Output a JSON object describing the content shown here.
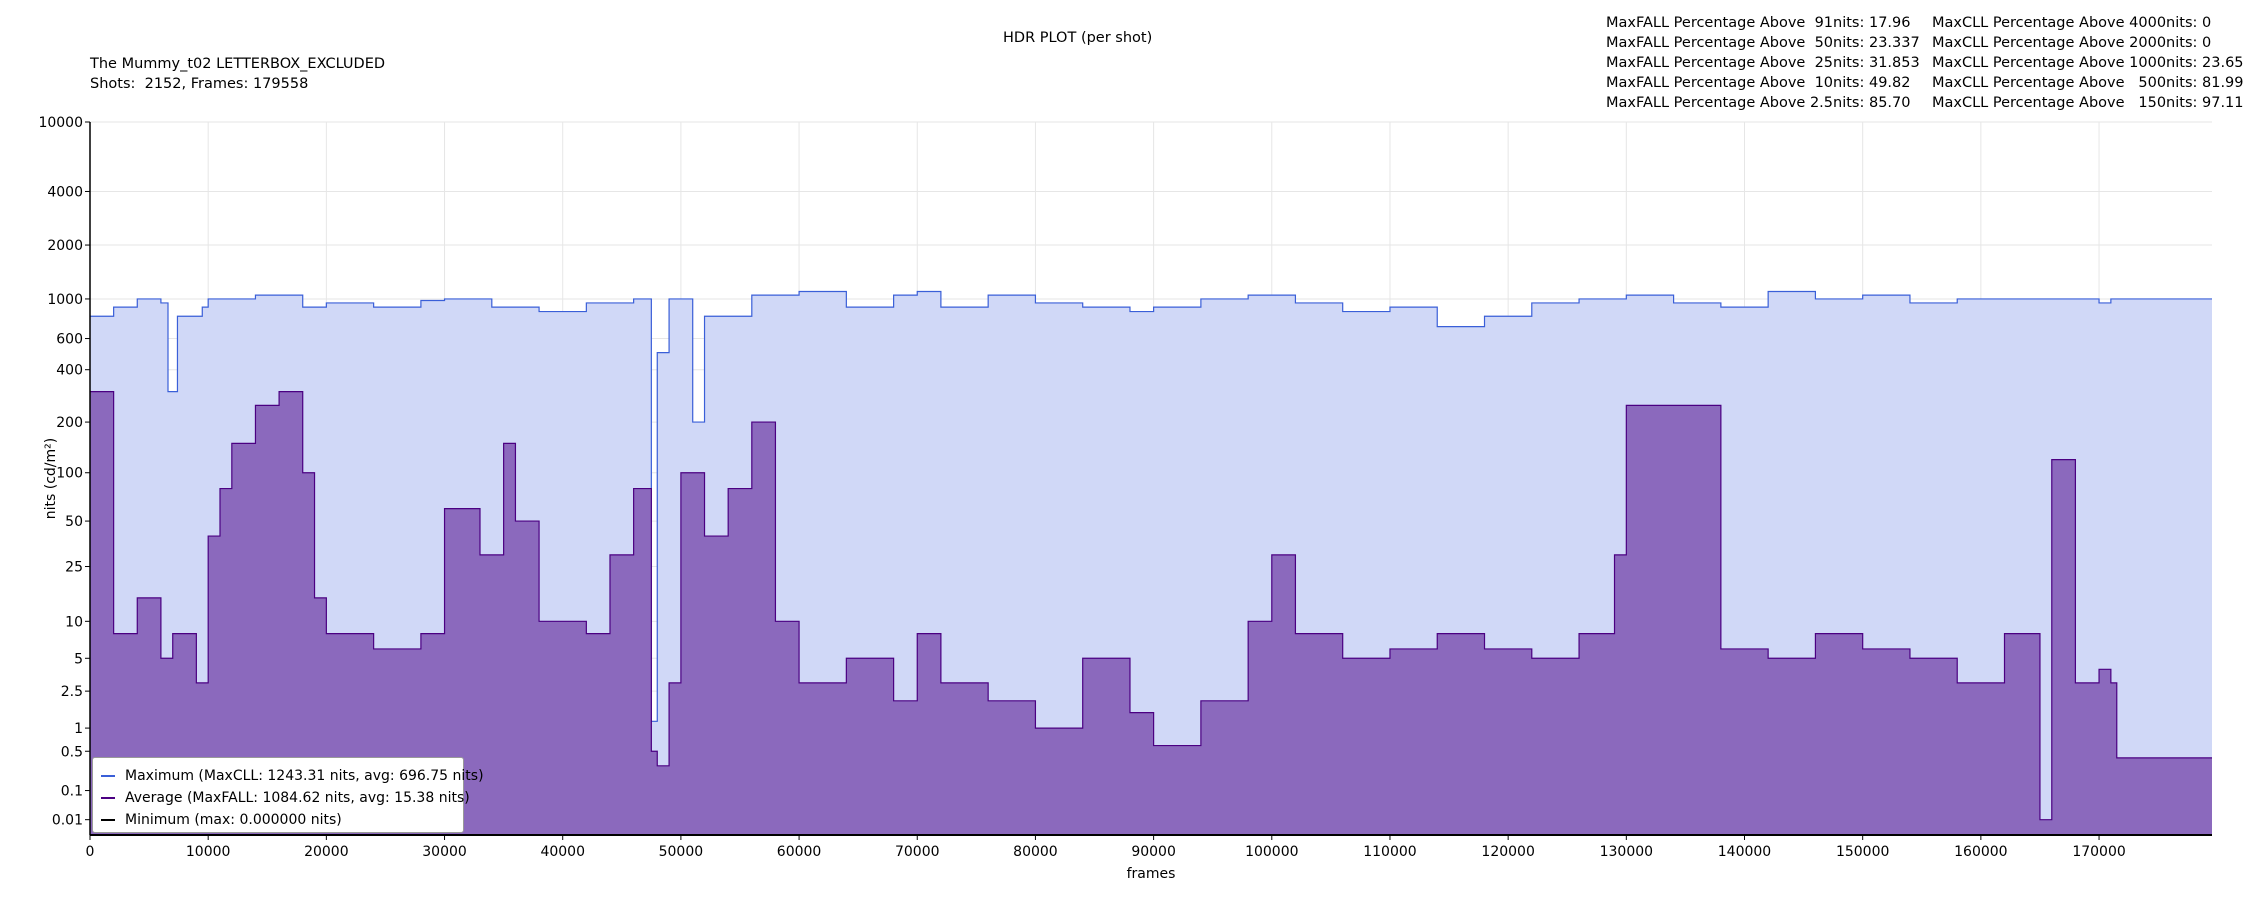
{
  "header": {
    "plot_title": "HDR PLOT (per shot)",
    "source_title": "The Mummy_t02 LETTERBOX_EXCLUDED",
    "shots_frames": "Shots:  2152, Frames: 179558"
  },
  "stats": {
    "maxfall": [
      "MaxFALL Percentage Above  91nits: 17.96",
      "MaxFALL Percentage Above  50nits: 23.337",
      "MaxFALL Percentage Above  25nits: 31.853",
      "MaxFALL Percentage Above  10nits: 49.82",
      "MaxFALL Percentage Above 2.5nits: 85.70"
    ],
    "maxcll": [
      "MaxCLL Percentage Above 4000nits: 0",
      "MaxCLL Percentage Above 2000nits: 0",
      "MaxCLL Percentage Above 1000nits: 23.65",
      "MaxCLL Percentage Above   500nits: 81.99",
      "MaxCLL Percentage Above   150nits: 97.11"
    ]
  },
  "legend": {
    "maximum": "Maximum (MaxCLL: 1243.31 nits, avg: 696.75 nits)",
    "average": "Average (MaxFALL: 1084.62 nits, avg: 15.38 nits)",
    "minimum": "Minimum (max: 0.000000 nits)"
  },
  "colors": {
    "max_line": "#3a5fd8",
    "max_fill": "#d0d8f7",
    "avg_line": "#4b0082",
    "avg_fill": "#8b69bd",
    "min_line": "#000000",
    "grid": "#e6e6e6"
  },
  "chart_data": {
    "type": "area",
    "title": "HDR PLOT (per shot)",
    "xlabel": "frames",
    "ylabel": "nits (cd/m²)",
    "xlim": [
      0,
      179558
    ],
    "ylim": [
      0,
      10000
    ],
    "y_scale": "PQ (ST 2084)",
    "grid": true,
    "legend_position": "bottom-left",
    "x_ticks": [
      0,
      10000,
      20000,
      30000,
      40000,
      50000,
      60000,
      70000,
      80000,
      90000,
      100000,
      110000,
      120000,
      130000,
      140000,
      150000,
      160000,
      170000
    ],
    "y_ticks": [
      0.01,
      0.1,
      0.5,
      1,
      2.5,
      5,
      10,
      25,
      50,
      100,
      200,
      400,
      600,
      1000,
      2000,
      4000,
      10000
    ],
    "series": [
      {
        "name": "Maximum (MaxCLL: 1243.31 nits, avg: 696.75 nits)",
        "x": [
          0,
          1700,
          2000,
          4000,
          6000,
          6600,
          7400,
          9500,
          10000,
          14000,
          18000,
          20000,
          24000,
          28000,
          30000,
          34000,
          38000,
          42000,
          46000,
          47500,
          48000,
          49000,
          51000,
          52000,
          56000,
          60000,
          64000,
          68000,
          70000,
          72000,
          76000,
          80000,
          84000,
          88000,
          90000,
          94000,
          98000,
          102000,
          106000,
          110000,
          114000,
          118000,
          122000,
          126000,
          130000,
          134000,
          138000,
          142000,
          146000,
          150000,
          154000,
          158000,
          162000,
          166000,
          168000,
          170000,
          171000,
          171500,
          179558
        ],
        "values": [
          800,
          800,
          900,
          1000,
          950,
          300,
          800,
          900,
          1000,
          1050,
          900,
          950,
          900,
          980,
          1000,
          900,
          850,
          950,
          1000,
          1.2,
          500,
          1000,
          200,
          800,
          1050,
          1100,
          900,
          1050,
          1100,
          900,
          1050,
          950,
          900,
          850,
          900,
          1000,
          1050,
          950,
          850,
          900,
          700,
          800,
          950,
          1000,
          1050,
          950,
          900,
          1100,
          1000,
          1050,
          950,
          1000,
          1000,
          1000,
          1000,
          950,
          1000,
          1000,
          1000
        ]
      },
      {
        "name": "Average (MaxFALL: 1084.62 nits, avg: 15.38 nits)",
        "x": [
          0,
          1700,
          2000,
          4000,
          6000,
          7000,
          9000,
          10000,
          11000,
          12000,
          14000,
          16000,
          18000,
          19000,
          20000,
          24000,
          28000,
          30000,
          33000,
          35000,
          36000,
          38000,
          42000,
          44000,
          46000,
          47500,
          48000,
          49000,
          50000,
          52000,
          54000,
          56000,
          58000,
          60000,
          64000,
          68000,
          70000,
          72000,
          76000,
          80000,
          84000,
          88000,
          90000,
          94000,
          98000,
          100000,
          102000,
          106000,
          110000,
          114000,
          118000,
          122000,
          126000,
          129000,
          130000,
          134000,
          138000,
          142000,
          146000,
          150000,
          154000,
          158000,
          162000,
          165000,
          166000,
          168000,
          170000,
          171000,
          171500,
          179558
        ],
        "values": [
          300,
          300,
          8,
          15,
          5,
          8,
          3,
          40,
          80,
          150,
          250,
          300,
          100,
          15,
          8,
          6,
          8,
          60,
          30,
          150,
          50,
          10,
          8,
          30,
          80,
          0.5,
          0.3,
          3,
          100,
          40,
          80,
          200,
          10,
          3,
          5,
          2,
          8,
          3,
          2,
          1,
          5,
          1.5,
          0.6,
          2,
          10,
          30,
          8,
          5,
          6,
          8,
          6,
          5,
          8,
          30,
          250,
          250,
          6,
          5,
          8,
          6,
          5,
          3,
          8,
          0.01,
          120,
          3,
          4,
          3,
          0.4,
          0.4
        ]
      },
      {
        "name": "Minimum (max: 0.000000 nits)",
        "x": [
          0,
          179558
        ],
        "values": [
          0,
          0
        ]
      }
    ]
  }
}
